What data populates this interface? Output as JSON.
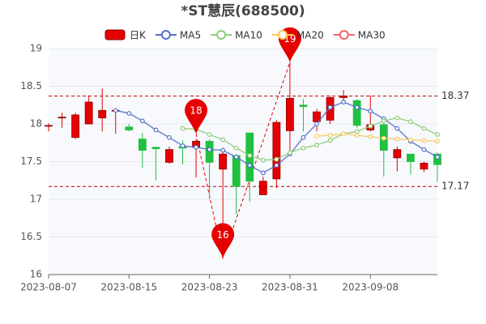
{
  "chart_data": {
    "type": "candlestick",
    "title": "*ST慧辰(688500)",
    "categories": [
      "2023-08-07",
      null,
      null,
      null,
      null,
      null,
      "2023-08-15",
      null,
      null,
      null,
      null,
      null,
      "2023-08-23",
      null,
      null,
      null,
      null,
      null,
      "2023-08-31",
      null,
      null,
      null,
      null,
      null,
      "2023-09-08",
      null,
      null,
      null,
      null,
      null
    ],
    "series": [
      {
        "name": "日K",
        "type": "candlestick",
        "up_color": "#e60000",
        "down_color": "#20c040",
        "open": [
          17.97,
          18.08,
          17.82,
          18.0,
          18.08,
          18.17,
          17.96,
          17.8,
          17.69,
          17.49,
          17.7,
          17.69,
          17.77,
          17.4,
          17.58,
          17.88,
          17.06,
          17.27,
          17.91,
          18.25,
          18.03,
          18.05,
          18.35,
          18.31,
          17.92,
          17.99,
          17.55,
          17.6,
          17.4,
          17.6
        ],
        "close": [
          17.98,
          18.09,
          18.12,
          18.29,
          18.18,
          18.18,
          17.92,
          17.65,
          17.67,
          17.66,
          17.68,
          17.77,
          17.49,
          17.6,
          17.17,
          17.24,
          17.24,
          18.02,
          18.34,
          18.23,
          18.16,
          18.35,
          18.37,
          17.98,
          17.99,
          17.65,
          17.66,
          17.5,
          17.48,
          17.46
        ],
        "high": [
          18.01,
          18.15,
          18.15,
          18.38,
          18.47,
          18.2,
          18.0,
          17.88,
          17.7,
          17.7,
          17.78,
          17.8,
          17.8,
          17.63,
          17.6,
          17.88,
          17.3,
          18.05,
          18.82,
          18.33,
          18.2,
          18.37,
          18.45,
          18.33,
          18.38,
          18.05,
          17.7,
          17.6,
          17.5,
          17.62
        ],
        "low": [
          17.9,
          17.95,
          17.8,
          18.0,
          17.9,
          17.87,
          17.9,
          17.42,
          17.25,
          17.47,
          17.46,
          17.29,
          17.0,
          16.22,
          16.8,
          16.97,
          17.06,
          17.15,
          17.58,
          17.9,
          17.9,
          18.0,
          18.3,
          17.95,
          17.9,
          17.3,
          17.37,
          17.33,
          17.36,
          17.23
        ]
      },
      {
        "name": "MA5",
        "color": "#5470c6",
        "values": [
          null,
          null,
          null,
          null,
          null,
          18.18,
          18.14,
          18.04,
          17.92,
          17.82,
          17.71,
          17.69,
          17.66,
          17.65,
          17.56,
          17.45,
          17.35,
          17.45,
          17.6,
          17.82,
          18.0,
          18.22,
          18.29,
          18.22,
          18.17,
          18.07,
          17.94,
          17.77,
          17.66,
          17.56
        ]
      },
      {
        "name": "MA10",
        "color": "#91cc75",
        "values": [
          null,
          null,
          null,
          null,
          null,
          null,
          null,
          null,
          null,
          null,
          17.94,
          17.93,
          17.86,
          17.79,
          17.68,
          17.58,
          17.52,
          17.53,
          17.62,
          17.68,
          17.72,
          17.78,
          17.87,
          17.9,
          17.97,
          18.04,
          18.08,
          18.03,
          17.94,
          17.86
        ]
      },
      {
        "name": "MA20",
        "color": "#fac858",
        "values": [
          null,
          null,
          null,
          null,
          null,
          null,
          null,
          null,
          null,
          null,
          null,
          null,
          null,
          null,
          null,
          null,
          null,
          null,
          null,
          null,
          17.84,
          17.85,
          17.87,
          17.85,
          17.83,
          17.81,
          17.8,
          17.79,
          17.78,
          17.77
        ]
      },
      {
        "name": "MA30",
        "color": "#ee6666",
        "values": [
          null,
          null,
          null,
          null,
          null,
          null,
          null,
          null,
          null,
          null,
          null,
          null,
          null,
          null,
          null,
          null,
          null,
          null,
          null,
          null,
          null,
          null,
          null,
          null,
          null,
          null,
          null,
          null,
          null,
          null
        ]
      }
    ],
    "pins": {
      "color": "#e60000",
      "values": [
        null,
        null,
        null,
        null,
        null,
        null,
        null,
        null,
        null,
        null,
        null,
        17.87,
        null,
        16.22,
        null,
        null,
        null,
        null,
        18.82,
        null,
        null,
        null,
        null,
        null,
        null,
        null,
        null,
        null,
        null,
        null
      ],
      "value_labels": [
        null,
        null,
        null,
        null,
        null,
        null,
        null,
        null,
        null,
        null,
        null,
        "18",
        null,
        "16",
        null,
        null,
        null,
        null,
        "19",
        null,
        null,
        null,
        null,
        null,
        null,
        null,
        null,
        null,
        null,
        null
      ]
    },
    "ref_lines": [
      18.37,
      17.17
    ],
    "ylim": [
      16,
      19
    ],
    "yticks": [
      16,
      16.5,
      17,
      17.5,
      18,
      18.5,
      19
    ],
    "grid": true
  }
}
